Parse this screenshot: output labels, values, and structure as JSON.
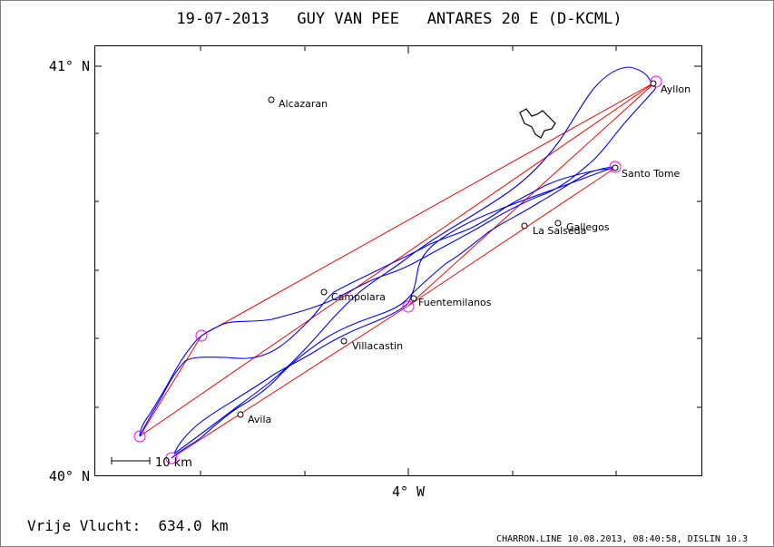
{
  "title": "19-07-2013   GUY VAN PEE   ANTARES 20 E (D-KCML)",
  "axes": {
    "lat_top": "41° N",
    "lat_bottom": "40° N",
    "lon_label": "4° W"
  },
  "scale_bar": "10 km",
  "places": [
    {
      "name": "Alcazaran"
    },
    {
      "name": "Ayllon"
    },
    {
      "name": "Santo Tome"
    },
    {
      "name": "La Salseda"
    },
    {
      "name": "Gallegos"
    },
    {
      "name": "Campolara"
    },
    {
      "name": "Fuentemilanos"
    },
    {
      "name": "Villacastin"
    },
    {
      "name": "Avila"
    }
  ],
  "footer": {
    "distance": "Vrije Vlucht:  634.0 km",
    "software": "CHARRON.LINE 10.08.2013, 08:40:58, DISLIN 10.3"
  },
  "colors": {
    "track": "#0000ff",
    "task_line": "#ff0000",
    "turnpoint": "#ff00ff",
    "frame": "#000000"
  }
}
